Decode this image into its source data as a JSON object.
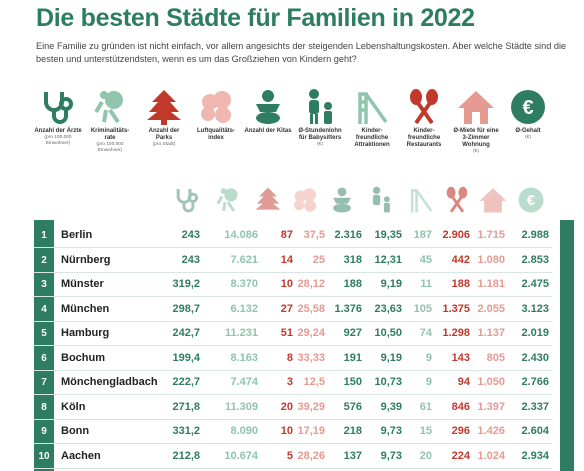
{
  "title": "Die besten Städte für Familien in 2022",
  "intro": "Eine Familie zu gründen ist nicht einfach, vor allem angesichts der steigenden Lebenshaltungskosten. Aber welche Städte sind die besten und unterstützendsten, wenn es um das Großziehen von Kindern geht?",
  "colors": {
    "green": "#2e7d63",
    "light_green": "#8fc4ad",
    "red": "#c0392b",
    "light_red": "#e59a92",
    "pink": "#f0b7b0"
  },
  "legend": [
    {
      "icon": "stethoscope-icon",
      "label": "Anzahl der Ärzte",
      "sub": "(pro 100.000 Einwohner)"
    },
    {
      "icon": "running-thief-icon",
      "label": "Kriminalitäts-rate",
      "sub": "(pro 100.000 Einwohner)"
    },
    {
      "icon": "tree-icon",
      "label": "Anzahl der Parks",
      "sub": "(pro Stadt)"
    },
    {
      "icon": "cloud-icon",
      "label": "Luftqualitäts-index",
      "sub": ""
    },
    {
      "icon": "baby-icon",
      "label": "Anzahl der Kitas",
      "sub": ""
    },
    {
      "icon": "babysitter-icon",
      "label": "Ø-Stundenlohn für Babysitters",
      "sub": "(€)"
    },
    {
      "icon": "slide-icon",
      "label": "Kinder-freundliche Attraktionen",
      "sub": ""
    },
    {
      "icon": "cutlery-icon",
      "label": "Kinder-freundliche Restaurants",
      "sub": ""
    },
    {
      "icon": "house-icon",
      "label": "Ø-Miete für eine 3-Zimmer Wohnung",
      "sub": "(€)"
    },
    {
      "icon": "euro-coin-icon",
      "label": "Ø-Gehalt",
      "sub": "(€)"
    }
  ],
  "rows": [
    {
      "rank": "1",
      "city": "Berlin",
      "v": [
        "243",
        "14.086",
        "87",
        "37,5",
        "2.316",
        "19,35",
        "187",
        "2.906",
        "1.715",
        "2.988"
      ]
    },
    {
      "rank": "2",
      "city": "Nürnberg",
      "v": [
        "243",
        "7.621",
        "14",
        "25",
        "318",
        "12,31",
        "45",
        "442",
        "1.080",
        "2.853"
      ]
    },
    {
      "rank": "3",
      "city": "Münster",
      "v": [
        "319,2",
        "8.370",
        "10",
        "28,12",
        "188",
        "9,19",
        "11",
        "188",
        "1.181",
        "2.475"
      ]
    },
    {
      "rank": "4",
      "city": "München",
      "v": [
        "298,7",
        "6.132",
        "27",
        "25,58",
        "1.376",
        "23,63",
        "105",
        "1.375",
        "2.055",
        "3.123"
      ]
    },
    {
      "rank": "5",
      "city": "Hamburg",
      "v": [
        "242,7",
        "11.231",
        "51",
        "29,24",
        "927",
        "10,50",
        "74",
        "1.298",
        "1.137",
        "2.019"
      ]
    },
    {
      "rank": "6",
      "city": "Bochum",
      "v": [
        "199,4",
        "8.163",
        "8",
        "33,33",
        "191",
        "9,19",
        "9",
        "143",
        "805",
        "2.430"
      ]
    },
    {
      "rank": "7",
      "city": "Mönchengladbach",
      "v": [
        "222,7",
        "7.474",
        "3",
        "12,5",
        "150",
        "10,73",
        "9",
        "94",
        "1.050",
        "2.766"
      ]
    },
    {
      "rank": "8",
      "city": "Köln",
      "v": [
        "271,8",
        "11.309",
        "20",
        "39,29",
        "576",
        "9,39",
        "61",
        "846",
        "1.397",
        "2.337"
      ]
    },
    {
      "rank": "9",
      "city": "Bonn",
      "v": [
        "331,2",
        "8.090",
        "10",
        "17,19",
        "218",
        "9,73",
        "15",
        "296",
        "1.426",
        "2.604"
      ]
    },
    {
      "rank": "10",
      "city": "Aachen",
      "v": [
        "212,8",
        "10.674",
        "5",
        "28,26",
        "137",
        "9,73",
        "20",
        "224",
        "1.024",
        "2.934"
      ]
    }
  ]
}
